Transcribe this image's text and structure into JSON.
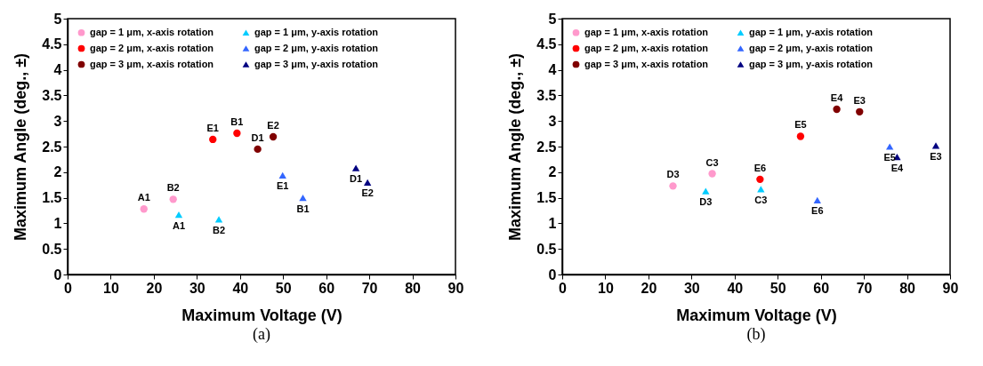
{
  "chart_data": [
    {
      "type": "scatter",
      "title": "(a)",
      "xlabel": "Maximum Voltage (V)",
      "ylabel": "Maximum Angle (deg., ±)",
      "xlim": [
        0,
        90
      ],
      "ylim": [
        0,
        5
      ],
      "xticks": [
        0,
        10,
        20,
        30,
        40,
        50,
        60,
        70,
        80,
        90
      ],
      "yticks": [
        0,
        0.5,
        1,
        1.5,
        2,
        2.5,
        3,
        3.5,
        4,
        4.5,
        5
      ],
      "grid": false,
      "legend": "top left",
      "series": [
        {
          "name": "gap = 1 μm, x-axis rotation",
          "color": "#ff99cc",
          "marker": "circle",
          "x": [
            17.7,
            24.5
          ],
          "values": [
            1.28,
            1.47
          ]
        },
        {
          "name": "gap = 2 μm, x-axis rotation",
          "color": "#ff0000",
          "marker": "circle",
          "x": [
            33.7,
            39.3
          ],
          "values": [
            2.64,
            2.76
          ]
        },
        {
          "name": "gap = 3 μm, x-axis rotation",
          "color": "#800000",
          "marker": "circle",
          "x": [
            44.1,
            47.7
          ],
          "values": [
            2.45,
            2.69
          ]
        },
        {
          "name": "gap = 1 μm, y-axis rotation",
          "color": "#00ccff",
          "marker": "triangle",
          "x": [
            25.8,
            35.1
          ],
          "values": [
            1.17,
            1.08
          ]
        },
        {
          "name": "gap = 2 μm, y-axis rotation",
          "color": "#3366ff",
          "marker": "triangle",
          "x": [
            49.9,
            54.6
          ],
          "values": [
            1.94,
            1.5
          ]
        },
        {
          "name": "gap = 3 μm, y-axis rotation",
          "color": "#000080",
          "marker": "triangle",
          "x": [
            66.9,
            69.6
          ],
          "values": [
            2.08,
            1.8
          ]
        }
      ],
      "annotations": [
        {
          "text": "A1",
          "x": 17.7,
          "y": 1.28
        },
        {
          "text": "B2",
          "x": 24.5,
          "y": 1.47
        },
        {
          "text": "E1",
          "x": 33.7,
          "y": 2.64
        },
        {
          "text": "B1",
          "x": 39.3,
          "y": 2.76
        },
        {
          "text": "D1",
          "x": 44.1,
          "y": 2.45
        },
        {
          "text": "E2",
          "x": 47.7,
          "y": 2.69
        },
        {
          "text": "A1",
          "x": 25.8,
          "y": 1.17
        },
        {
          "text": "B2",
          "x": 35.1,
          "y": 1.08
        },
        {
          "text": "E1",
          "x": 49.9,
          "y": 1.94
        },
        {
          "text": "B1",
          "x": 54.6,
          "y": 1.5
        },
        {
          "text": "D1",
          "x": 66.9,
          "y": 2.08
        },
        {
          "text": "E2",
          "x": 69.6,
          "y": 1.8
        }
      ]
    },
    {
      "type": "scatter",
      "title": "(b)",
      "xlabel": "Maximum Voltage (V)",
      "ylabel": "Maximum Angle (deg., ±)",
      "xlim": [
        0,
        90
      ],
      "ylim": [
        0,
        5
      ],
      "xticks": [
        0,
        10,
        20,
        30,
        40,
        50,
        60,
        70,
        80,
        90
      ],
      "yticks": [
        0,
        0.5,
        1,
        1.5,
        2,
        2.5,
        3,
        3.5,
        4,
        4.5,
        5
      ],
      "grid": false,
      "legend": "top left",
      "series": [
        {
          "name": "gap = 1 μm, x-axis rotation",
          "color": "#ff99cc",
          "marker": "circle",
          "x": [
            25.7,
            34.8
          ],
          "values": [
            1.73,
            1.97
          ]
        },
        {
          "name": "gap = 2 μm, x-axis rotation",
          "color": "#ff0000",
          "marker": "circle",
          "x": [
            45.9,
            55.3
          ],
          "values": [
            1.86,
            2.7
          ]
        },
        {
          "name": "gap = 3 μm, x-axis rotation",
          "color": "#800000",
          "marker": "circle",
          "x": [
            63.7,
            69.0
          ],
          "values": [
            3.23,
            3.18
          ]
        },
        {
          "name": "gap = 1 μm, y-axis rotation",
          "color": "#00ccff",
          "marker": "triangle",
          "x": [
            33.3,
            46.1
          ],
          "values": [
            1.63,
            1.67
          ]
        },
        {
          "name": "gap = 2 μm, y-axis rotation",
          "color": "#3366ff",
          "marker": "triangle",
          "x": [
            59.2,
            76.0
          ],
          "values": [
            1.45,
            2.5
          ]
        },
        {
          "name": "gap = 3 μm, y-axis rotation",
          "color": "#000080",
          "marker": "triangle",
          "x": [
            77.7,
            86.7
          ],
          "values": [
            2.3,
            2.52
          ]
        }
      ],
      "annotations": [
        {
          "text": "D3",
          "x": 25.7,
          "y": 1.73
        },
        {
          "text": "C3",
          "x": 34.8,
          "y": 1.97
        },
        {
          "text": "E6",
          "x": 45.9,
          "y": 1.86
        },
        {
          "text": "E5",
          "x": 55.3,
          "y": 2.7
        },
        {
          "text": "E4",
          "x": 63.7,
          "y": 3.23
        },
        {
          "text": "E3",
          "x": 69.0,
          "y": 3.18
        },
        {
          "text": "D3",
          "x": 33.3,
          "y": 1.63
        },
        {
          "text": "C3",
          "x": 46.1,
          "y": 1.67
        },
        {
          "text": "E6",
          "x": 59.2,
          "y": 1.45
        },
        {
          "text": "E5",
          "x": 76.0,
          "y": 2.5
        },
        {
          "text": "E4",
          "x": 77.7,
          "y": 2.3
        },
        {
          "text": "E3",
          "x": 86.7,
          "y": 2.52
        }
      ]
    }
  ]
}
